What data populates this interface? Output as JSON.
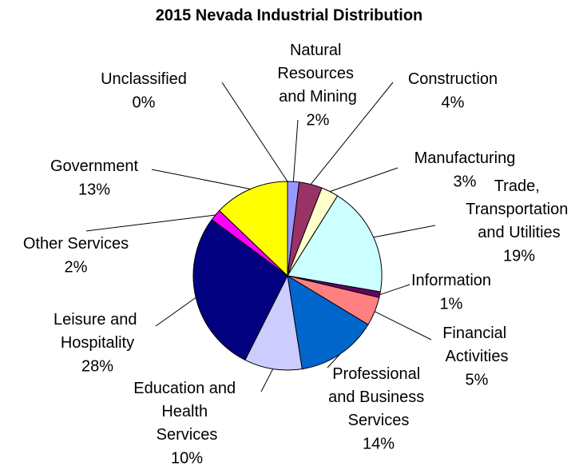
{
  "chart_data": {
    "type": "pie",
    "title": "2015 Nevada Industrial Distribution",
    "categories": [
      "Unclassified",
      "Natural Resources and Mining",
      "Construction",
      "Manufacturing",
      "Trade, Transportation and Utilities",
      "Information",
      "Financial Activities",
      "Professional and Business Services",
      "Education and Health Services",
      "Leisure and Hospitality",
      "Other Services",
      "Government"
    ],
    "values": [
      0,
      2,
      4,
      3,
      19,
      1,
      5,
      14,
      10,
      28,
      2,
      13
    ],
    "value_labels": [
      "0%",
      "2%",
      "4%",
      "3%",
      "19%",
      "1%",
      "5%",
      "14%",
      "10%",
      "28%",
      "2%",
      "13%"
    ],
    "colors": [
      "#3366cc",
      "#9999ff",
      "#993366",
      "#ffffcc",
      "#ccffff",
      "#660066",
      "#ff8080",
      "#0066cc",
      "#ccccff",
      "#000080",
      "#ff00ff",
      "#ffff00"
    ]
  }
}
